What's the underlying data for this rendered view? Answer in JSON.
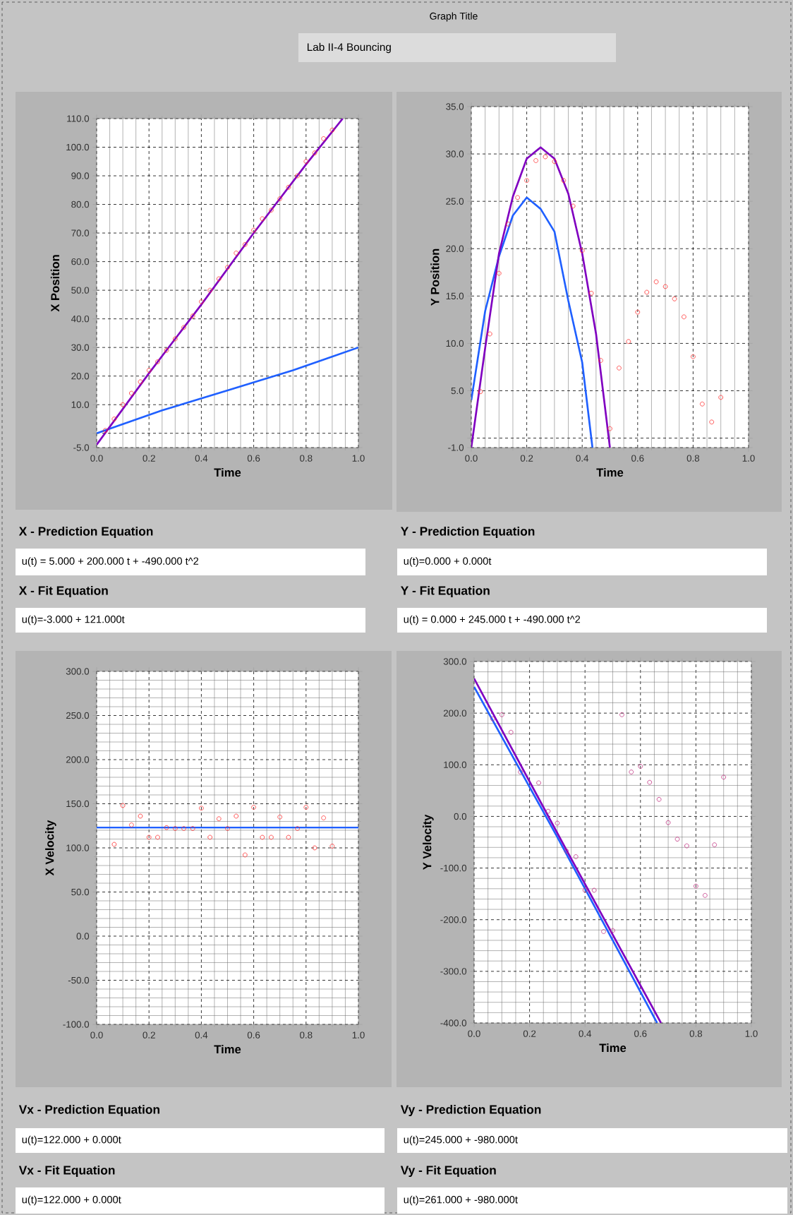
{
  "chart_data": [
    {
      "type": "other",
      "annotations": [
        "Graph Title",
        "Lab II-4 Bouncing"
      ]
    },
    {
      "type": "scatter",
      "xlabel": "Time",
      "ylabel": "X Position",
      "grid": true,
      "xlim": [
        0,
        1
      ],
      "ylim": [
        -5,
        110
      ],
      "xticks": [
        {
          "value": 0,
          "label": "0.0"
        },
        {
          "value": 0.2,
          "label": "0.2"
        },
        {
          "value": 0.4,
          "label": "0.4"
        },
        {
          "value": 0.6,
          "label": "0.6"
        },
        {
          "value": 0.8,
          "label": "0.8"
        },
        {
          "value": 1,
          "label": "1.0"
        }
      ],
      "yticks": [
        {
          "value": -5,
          "label": "-5.0"
        },
        {
          "value": 0,
          "label": null
        },
        {
          "value": 10,
          "label": "10.0"
        },
        {
          "value": 20,
          "label": "20.0"
        },
        {
          "value": 30,
          "label": "30.0"
        },
        {
          "value": 40,
          "label": "40.0"
        },
        {
          "value": 50,
          "label": "50.0"
        },
        {
          "value": 60,
          "label": "60.0"
        },
        {
          "value": 70,
          "label": "70.0"
        },
        {
          "value": 80,
          "label": "80.0"
        },
        {
          "value": 90,
          "label": "90.0"
        },
        {
          "value": 100,
          "label": "100.0"
        },
        {
          "value": 110,
          "label": "110.0"
        }
      ],
      "series": [
        {
          "type": "line",
          "color": "#2060ff",
          "x": [
            0,
            0.25,
            0.5,
            0.75,
            1
          ],
          "values": [
            0,
            8,
            15,
            22,
            30
          ]
        },
        {
          "type": "line",
          "color": "#8000c0",
          "x": [
            0,
            0.2,
            0.4,
            0.6,
            0.8,
            0.94
          ],
          "values": [
            -4,
            21,
            45,
            70,
            94,
            110
          ]
        },
        {
          "type": "scatter",
          "marker": "circle",
          "color": "#ff3030",
          "x": [
            0.033,
            0.067,
            0.1,
            0.133,
            0.167,
            0.2,
            0.233,
            0.267,
            0.3,
            0.333,
            0.367,
            0.4,
            0.433,
            0.467,
            0.5,
            0.533,
            0.567,
            0.6,
            0.633,
            0.667,
            0.7,
            0.733,
            0.767,
            0.8,
            0.833,
            0.867,
            0.9
          ],
          "values": [
            1,
            5,
            10,
            14,
            18,
            22,
            25,
            29,
            33,
            37,
            41,
            46,
            50,
            54,
            58,
            63,
            66,
            71,
            75,
            78,
            82,
            86,
            90,
            95,
            98,
            103,
            106
          ]
        }
      ],
      "annotations": [
        "X - Prediction Equation",
        "u(t) = 5.000 + 200.000 t + -490.000 t^2",
        "X - Fit Equation",
        "u(t)=-3.000 + 121.000t"
      ]
    },
    {
      "type": "scatter",
      "xlabel": "Time",
      "ylabel": "Y Position",
      "grid": true,
      "xlim": [
        0,
        1
      ],
      "ylim": [
        -1,
        35
      ],
      "xticks": [
        {
          "value": 0,
          "label": "0.0"
        },
        {
          "value": 0.2,
          "label": "0.2"
        },
        {
          "value": 0.4,
          "label": "0.4"
        },
        {
          "value": 0.6,
          "label": "0.6"
        },
        {
          "value": 0.8,
          "label": "0.8"
        },
        {
          "value": 1,
          "label": "1.0"
        }
      ],
      "yticks": [
        {
          "value": -1,
          "label": "-1.0"
        },
        {
          "value": 0,
          "label": null
        },
        {
          "value": 5,
          "label": "5.0"
        },
        {
          "value": 10,
          "label": "10.0"
        },
        {
          "value": 15,
          "label": "15.0"
        },
        {
          "value": 20,
          "label": "20.0"
        },
        {
          "value": 25,
          "label": "25.0"
        },
        {
          "value": 30,
          "label": "30.0"
        },
        {
          "value": 35,
          "label": "35.0"
        }
      ],
      "series": [
        {
          "type": "line",
          "color": "#2060ff",
          "x": [
            0,
            0.05,
            0.1,
            0.15,
            0.2,
            0.25,
            0.3,
            0.35,
            0.4,
            0.437
          ],
          "values": [
            4,
            13.4,
            19.2,
            23.5,
            25.4,
            24.2,
            21.8,
            14.5,
            8,
            -1
          ]
        },
        {
          "type": "line",
          "color": "#8000c0",
          "x": [
            0,
            0.05,
            0.1,
            0.15,
            0.2,
            0.25,
            0.3,
            0.35,
            0.4,
            0.45,
            0.5
          ],
          "values": [
            -1,
            9.5,
            19.5,
            25.5,
            29.5,
            30.7,
            29.5,
            25.8,
            19.5,
            11,
            -1
          ]
        },
        {
          "type": "scatter",
          "marker": "circle",
          "color": "#ff3030",
          "x": [
            0.033,
            0.067,
            0.1,
            0.133,
            0.167,
            0.2,
            0.233,
            0.267,
            0.3,
            0.333,
            0.367,
            0.4,
            0.433,
            0.467,
            0.5,
            0.533,
            0.567,
            0.6,
            0.633,
            0.667,
            0.7,
            0.733,
            0.767,
            0.8,
            0.833,
            0.867,
            0.9
          ],
          "values": [
            4.9,
            11,
            17.4,
            22.6,
            25.4,
            27.2,
            29.3,
            29.7,
            29.2,
            27.2,
            24.5,
            19.8,
            15.3,
            8.2,
            1,
            7.4,
            10.2,
            13.3,
            15.4,
            16.5,
            16,
            14.7,
            12.8,
            8.6,
            3.6,
            1.7,
            4.3
          ]
        }
      ],
      "annotations": [
        "Y - Prediction Equation",
        "u(t)=0.000 + 0.000t",
        "Y - Fit Equation",
        "u(t) = 0.000 + 245.000 t + -490.000 t^2"
      ]
    },
    {
      "type": "scatter",
      "xlabel": "Time",
      "ylabel": "X Velocity",
      "grid": true,
      "xlim": [
        0,
        1
      ],
      "ylim": [
        -100,
        300
      ],
      "xticks": [
        {
          "value": 0,
          "label": "0.0"
        },
        {
          "value": 0.2,
          "label": "0.2"
        },
        {
          "value": 0.4,
          "label": "0.4"
        },
        {
          "value": 0.6,
          "label": "0.6"
        },
        {
          "value": 0.8,
          "label": "0.8"
        },
        {
          "value": 1,
          "label": "1.0"
        }
      ],
      "yticks": [
        {
          "value": -100,
          "label": "-100.0"
        },
        {
          "value": -50,
          "label": "-50.0"
        },
        {
          "value": 0,
          "label": "0.0"
        },
        {
          "value": 50,
          "label": "50.0"
        },
        {
          "value": 100,
          "label": "100.0"
        },
        {
          "value": 150,
          "label": "150.0"
        },
        {
          "value": 200,
          "label": "200.0"
        },
        {
          "value": 250,
          "label": "250.0"
        },
        {
          "value": 300,
          "label": "300.0"
        }
      ],
      "series": [
        {
          "type": "line",
          "color": "#2060ff",
          "x": [
            0,
            1
          ],
          "values": [
            123,
            123
          ]
        },
        {
          "type": "scatter",
          "marker": "circle",
          "color": "#ff3030",
          "x": [
            0.067,
            0.1,
            0.133,
            0.167,
            0.2,
            0.233,
            0.267,
            0.3,
            0.333,
            0.367,
            0.4,
            0.433,
            0.467,
            0.5,
            0.533,
            0.567,
            0.6,
            0.633,
            0.667,
            0.7,
            0.733,
            0.767,
            0.8,
            0.833,
            0.867,
            0.9
          ],
          "values": [
            104,
            148,
            126,
            136,
            112,
            112,
            123,
            122,
            122,
            122,
            145,
            112,
            133,
            122,
            136,
            92,
            146,
            112,
            112,
            135,
            112,
            122,
            146,
            100,
            134,
            102
          ]
        }
      ],
      "annotations": [
        "Vx - Prediction Equation",
        "u(t)=122.000 + 0.000t",
        "Vx - Fit Equation",
        "u(t)=122.000 + 0.000t"
      ]
    },
    {
      "type": "scatter",
      "xlabel": "Time",
      "ylabel": "Y Velocity",
      "grid": true,
      "xlim": [
        0,
        1
      ],
      "ylim": [
        -400,
        300
      ],
      "xticks": [
        {
          "value": 0,
          "label": "0.0"
        },
        {
          "value": 0.2,
          "label": "0.2"
        },
        {
          "value": 0.4,
          "label": "0.4"
        },
        {
          "value": 0.6,
          "label": "0.6"
        },
        {
          "value": 0.8,
          "label": "0.8"
        },
        {
          "value": 1,
          "label": "1.0"
        }
      ],
      "yticks": [
        {
          "value": -400,
          "label": "-400.0"
        },
        {
          "value": -300,
          "label": "-300.0"
        },
        {
          "value": -200,
          "label": "-200.0"
        },
        {
          "value": -100,
          "label": "-100.0"
        },
        {
          "value": 0,
          "label": "0.0"
        },
        {
          "value": 100,
          "label": "100.0"
        },
        {
          "value": 200,
          "label": "200.0"
        },
        {
          "value": 300,
          "label": "300.0"
        }
      ],
      "series": [
        {
          "type": "line",
          "color": "#2060ff",
          "x": [
            0,
            0.3,
            0.66
          ],
          "values": [
            251,
            -40,
            -400
          ]
        },
        {
          "type": "line",
          "color": "#8000c0",
          "x": [
            0,
            0.337,
            0.674
          ],
          "values": [
            267,
            -69,
            -400
          ]
        },
        {
          "type": "scatter",
          "marker": "circle",
          "color": "#c03080",
          "x": [
            0.067,
            0.1,
            0.133,
            0.167,
            0.233,
            0.267,
            0.3,
            0.333,
            0.367,
            0.4,
            0.433,
            0.467,
            0.5,
            0.533,
            0.567,
            0.6,
            0.633,
            0.667,
            0.7,
            0.733,
            0.767,
            0.8,
            0.833,
            0.867,
            0.9
          ],
          "values": [
            189,
            197,
            163,
            86,
            65,
            10,
            -13,
            -67,
            -78,
            -143,
            -143,
            -223,
            -221,
            197,
            86,
            97,
            66,
            33,
            -12,
            -44,
            -57,
            -135,
            -153,
            -55,
            76
          ]
        }
      ],
      "annotations": [
        "Vy - Prediction Equation",
        "u(t)=245.000 + -980.000t",
        "Vy - Fit Equation",
        "u(t)=261.000 + -980.000t"
      ]
    }
  ]
}
